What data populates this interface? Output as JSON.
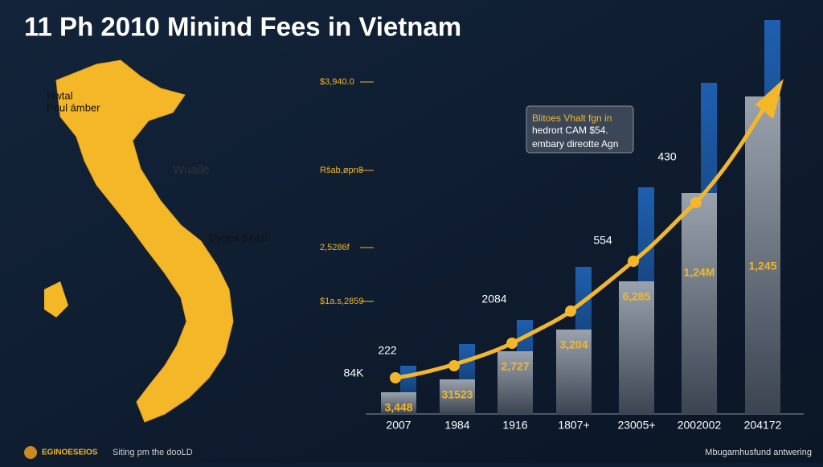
{
  "title": "11 Ph 2010 Minind Fees in Vietnam",
  "map": {
    "labels": [
      "Hwtal",
      "Poul ámber",
      "Wualle",
      "Dygns Sihtal"
    ]
  },
  "axis_labels": [
    "$3,940.0",
    "Rŝab,øpn8",
    "2,5286f",
    "$1a.s,2859"
  ],
  "callout": [
    "Blitoes Vhalt fgn in",
    "hedrort CAM $54.",
    "embary direotte Agn"
  ],
  "years": [
    "2007",
    "1984",
    "1916",
    "1807+",
    "23005+",
    "2002002",
    "204172"
  ],
  "bar_labels": [
    "3,448",
    "31523",
    "2,727",
    "3,204",
    "6,285",
    "1,24M",
    "1,245"
  ],
  "point_labels": [
    "84K",
    "222",
    "2084",
    "554",
    "430"
  ],
  "footer": {
    "logo": "EGINOESEIOS",
    "left": "Siting pm the dooLD",
    "right": "Mbugamhusfund antwering"
  }
}
